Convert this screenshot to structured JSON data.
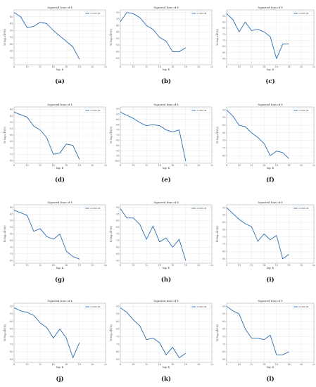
{
  "colors": {
    "series": "#2a6cb0",
    "grid": "#dfe3ea",
    "frame": "#9aa3ad"
  },
  "chart_data": [
    {
      "panel_label": "(a)",
      "type": "line",
      "title": "Squared bias of ẑ",
      "xlabel": "log₂ K",
      "ylabel": "10 log₁₀(b̂²(ẑ))",
      "legend": "d=XXX dB",
      "legend_position": "top-right",
      "grid": true,
      "xlim": [
        8,
        22
      ],
      "ylim": [
        -75,
        -35
      ],
      "xticks": [
        8,
        10,
        12,
        14,
        16,
        18,
        20,
        22
      ],
      "yticks": [
        -40,
        -45,
        -50,
        -55,
        -60,
        -65,
        -70
      ],
      "x": [
        8,
        9,
        10,
        11,
        12,
        13,
        14,
        15,
        16,
        17,
        18
      ],
      "y": [
        -37,
        -40,
        -48,
        -47,
        -44,
        -45,
        -50,
        -54,
        -58,
        -62,
        -71
      ]
    },
    {
      "panel_label": "(b)",
      "type": "line",
      "title": "Squared bias of ẑ",
      "xlabel": "log₂ K",
      "ylabel": "10 log₁₀(b̂²(ẑ))",
      "legend": "d=XXX dB",
      "legend_position": "top-right",
      "grid": true,
      "xlim": [
        8,
        22
      ],
      "ylim": [
        -70,
        -28
      ],
      "xticks": [
        8,
        10,
        12,
        14,
        16,
        18,
        20,
        22
      ],
      "yticks": [
        -30,
        -35,
        -40,
        -45,
        -50,
        -55,
        -60,
        -65
      ],
      "x": [
        8,
        9,
        10,
        11,
        12,
        13,
        14,
        15,
        16,
        17,
        18
      ],
      "y": [
        -37,
        -30,
        -31,
        -34,
        -40,
        -43,
        -49,
        -52,
        -60,
        -60,
        -57
      ]
    },
    {
      "panel_label": "(c)",
      "type": "line",
      "title": "Squared bias of ẑ",
      "xlabel": "log₂ K",
      "ylabel": "10 log₁₀(b̂²(ẑ))",
      "legend": "d=XXX dB",
      "legend_position": "top-right",
      "grid": true,
      "xlim": [
        8,
        22
      ],
      "ylim": [
        -95,
        -50
      ],
      "xticks": [
        8,
        10,
        12,
        14,
        16,
        18,
        20,
        22
      ],
      "yticks": [
        -55,
        -60,
        -65,
        -70,
        -75,
        -80,
        -85,
        -90
      ],
      "x": [
        8,
        9,
        10,
        11,
        12,
        13,
        14,
        15,
        16,
        17,
        18
      ],
      "y": [
        -53,
        -58,
        -68,
        -60,
        -67,
        -66,
        -68,
        -72,
        -90,
        -78,
        -78
      ]
    },
    {
      "panel_label": "(d)",
      "type": "line",
      "title": "Squared bias of ẑ",
      "xlabel": "log₂ K",
      "ylabel": "10 log₁₀(b̂²(ẑ))",
      "legend": "d=XXX dB",
      "legend_position": "top-right",
      "grid": true,
      "xlim": [
        8,
        22
      ],
      "ylim": [
        -82,
        -38
      ],
      "xticks": [
        8,
        10,
        12,
        14,
        16,
        18,
        20,
        22
      ],
      "yticks": [
        -40,
        -45,
        -50,
        -55,
        -60,
        -65,
        -70,
        -75,
        -80
      ],
      "x": [
        8,
        9,
        10,
        11,
        12,
        13,
        14,
        15,
        16,
        17,
        18
      ],
      "y": [
        -42,
        -44,
        -46,
        -53,
        -56,
        -62,
        -75,
        -74,
        -67,
        -68,
        -79
      ]
    },
    {
      "panel_label": "(e)",
      "type": "line",
      "title": "Squared bias of ẑ",
      "xlabel": "log₂ K",
      "ylabel": "10 log₁₀(b̂²(ẑ))",
      "legend": "d=XXX dB",
      "legend_position": "top-right",
      "grid": true,
      "xlim": [
        8,
        22
      ],
      "ylim": [
        -102,
        -48
      ],
      "xticks": [
        8,
        10,
        12,
        14,
        16,
        18,
        20,
        22
      ],
      "yticks": [
        -50,
        -55,
        -60,
        -65,
        -70,
        -75,
        -80,
        -85,
        -90,
        -95,
        -100
      ],
      "x": [
        8,
        9,
        10,
        11,
        12,
        13,
        14,
        15,
        16,
        17,
        18
      ],
      "y": [
        -53,
        -56,
        -59,
        -63,
        -66,
        -65,
        -66,
        -70,
        -72,
        -70,
        -100
      ]
    },
    {
      "panel_label": "(f)",
      "type": "line",
      "title": "Squared bias of ẑ",
      "xlabel": "log₂ K",
      "ylabel": "10 log₁₀(b̂²(ẑ))",
      "legend": "d=XXX dB",
      "legend_position": "top-right",
      "grid": true,
      "xlim": [
        8,
        22
      ],
      "ylim": [
        -85,
        -48
      ],
      "xticks": [
        8,
        10,
        12,
        14,
        16,
        18,
        20,
        22
      ],
      "yticks": [
        -50,
        -55,
        -60,
        -65,
        -70,
        -75,
        -80
      ],
      "x": [
        8,
        9,
        10,
        11,
        12,
        13,
        14,
        15,
        16,
        17,
        18
      ],
      "y": [
        -50,
        -54,
        -60,
        -61,
        -65,
        -68,
        -72,
        -80,
        -77,
        -78,
        -82
      ]
    },
    {
      "panel_label": "(g)",
      "type": "line",
      "title": "Squared bias of ẑ",
      "xlabel": "log₂ K",
      "ylabel": "10 log₁₀(b̂²(ẑ))",
      "legend": "d=XXX dB",
      "legend_position": "top-right",
      "grid": true,
      "xlim": [
        8,
        22
      ],
      "ylim": [
        -82,
        -38
      ],
      "xticks": [
        8,
        10,
        12,
        14,
        16,
        18,
        20,
        22
      ],
      "yticks": [
        -40,
        -45,
        -50,
        -55,
        -60,
        -65,
        -70,
        -75,
        -80
      ],
      "x": [
        8,
        9,
        10,
        11,
        12,
        13,
        14,
        15,
        16,
        17,
        18
      ],
      "y": [
        -42,
        -44,
        -46,
        -58,
        -56,
        -62,
        -64,
        -60,
        -73,
        -77,
        -79
      ]
    },
    {
      "panel_label": "(h)",
      "type": "line",
      "title": "Squared bias of ẑ",
      "xlabel": "log₂ K",
      "ylabel": "10 log₁₀(b̂²(ẑ))",
      "legend": "d=XXX dB",
      "legend_position": "top-right",
      "grid": true,
      "xlim": [
        8,
        22
      ],
      "ylim": [
        -92,
        -48
      ],
      "xticks": [
        8,
        10,
        12,
        14,
        16,
        18,
        20,
        22
      ],
      "yticks": [
        -50,
        -55,
        -60,
        -65,
        -70,
        -75,
        -80,
        -85,
        -90
      ],
      "x": [
        8,
        9,
        10,
        11,
        12,
        13,
        14,
        15,
        16,
        17,
        18
      ],
      "y": [
        -51,
        -58,
        -58,
        -63,
        -74,
        -64,
        -76,
        -73,
        -80,
        -74,
        -90
      ]
    },
    {
      "panel_label": "(i)",
      "type": "line",
      "title": "Squared bias of ẑ",
      "xlabel": "log₂ K",
      "ylabel": "10 log₁₀(b̂²(ẑ))",
      "legend": "d=XXX dB",
      "legend_position": "top-right",
      "grid": true,
      "xlim": [
        8,
        22
      ],
      "ylim": [
        -88,
        -48
      ],
      "xticks": [
        8,
        10,
        12,
        14,
        16,
        18,
        20,
        22
      ],
      "yticks": [
        -50,
        -55,
        -60,
        -65,
        -70,
        -75,
        -80,
        -85
      ],
      "x": [
        8,
        9,
        10,
        11,
        12,
        13,
        14,
        15,
        16,
        17,
        18
      ],
      "y": [
        -50,
        -54,
        -58,
        -61,
        -63,
        -73,
        -68,
        -72,
        -69,
        -85,
        -82
      ]
    },
    {
      "panel_label": "(j)",
      "type": "line",
      "title": "Squared bias of ẑ",
      "xlabel": "log₂ K",
      "ylabel": "10 log₁₀(b̂²(ẑ))",
      "legend": "d=XXX dB",
      "legend_position": "top-right",
      "grid": true,
      "xlim": [
        8,
        22
      ],
      "ylim": [
        -87,
        -48
      ],
      "xticks": [
        8,
        10,
        12,
        14,
        16,
        18,
        20,
        22
      ],
      "yticks": [
        -50,
        -55,
        -60,
        -65,
        -70,
        -75,
        -80,
        -85
      ],
      "x": [
        8,
        9,
        10,
        11,
        12,
        13,
        14,
        15,
        16,
        17,
        18
      ],
      "y": [
        -51,
        -53,
        -54,
        -56,
        -61,
        -64,
        -71,
        -65,
        -71,
        -84,
        -74
      ]
    },
    {
      "panel_label": "(k)",
      "type": "line",
      "title": "Squared bias of ẑ",
      "xlabel": "log₂ K",
      "ylabel": "10 log₁₀(b̂²(ẑ))",
      "legend": "d=XXX dB",
      "legend_position": "top-right",
      "grid": true,
      "xlim": [
        8,
        22
      ],
      "ylim": [
        -87,
        -48
      ],
      "xticks": [
        8,
        10,
        12,
        14,
        16,
        18,
        20,
        22
      ],
      "yticks": [
        -50,
        -55,
        -60,
        -65,
        -70,
        -75,
        -80,
        -85
      ],
      "x": [
        8,
        9,
        10,
        11,
        12,
        13,
        14,
        15,
        16,
        17,
        18
      ],
      "y": [
        -51,
        -54,
        -59,
        -63,
        -72,
        -71,
        -74,
        -82,
        -77,
        -84,
        -81
      ]
    },
    {
      "panel_label": "(l)",
      "type": "line",
      "title": "Squared bias of ẑ",
      "xlabel": "log₂ K",
      "ylabel": "10 log₁₀(b̂²(ẑ))",
      "legend": "d=XXX dB",
      "legend_position": "top-right",
      "grid": true,
      "xlim": [
        8,
        22
      ],
      "ylim": [
        -87,
        -48
      ],
      "xticks": [
        8,
        10,
        12,
        14,
        16,
        18,
        20,
        22
      ],
      "yticks": [
        -50,
        -55,
        -60,
        -65,
        -70,
        -75,
        -80,
        -85
      ],
      "x": [
        8,
        9,
        10,
        11,
        12,
        13,
        14,
        15,
        16,
        17,
        18
      ],
      "y": [
        -50,
        -53,
        -55,
        -65,
        -71,
        -71,
        -72,
        -69,
        -82,
        -82,
        -80
      ]
    }
  ]
}
